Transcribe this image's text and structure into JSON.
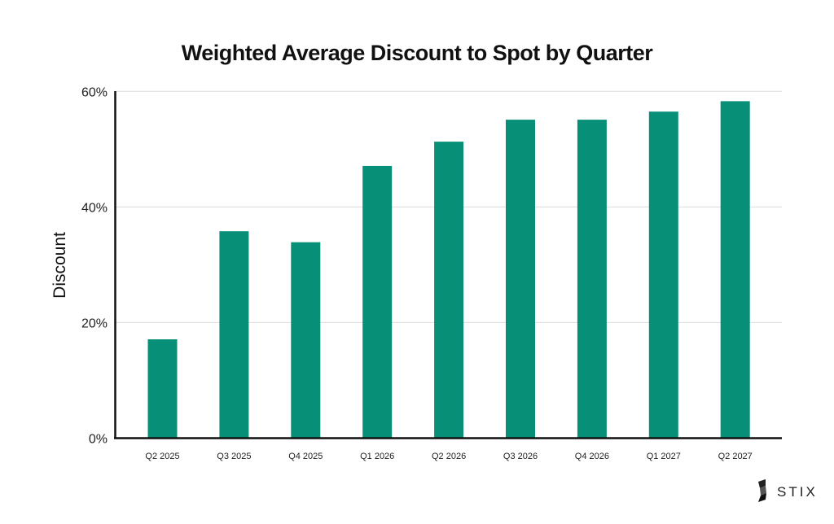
{
  "chart_data": {
    "type": "bar",
    "title": "Weighted Average Discount to Spot by Quarter",
    "xlabel": "",
    "ylabel": "Discount",
    "categories": [
      "Q2 2025",
      "Q3 2025",
      "Q4 2025",
      "Q1 2026",
      "Q2 2026",
      "Q3 2026",
      "Q4 2026",
      "Q1 2027",
      "Q2 2027"
    ],
    "values": [
      17.1,
      35.8,
      33.9,
      47.1,
      51.3,
      55.1,
      55.1,
      56.5,
      58.3
    ],
    "unit": "%",
    "ylim": [
      0,
      60
    ],
    "yticks": [
      0,
      20,
      40,
      60
    ],
    "ytick_labels": [
      "0%",
      "20%",
      "40%",
      "60%"
    ],
    "grid": true,
    "bar_color": "#078f78"
  },
  "logo": {
    "text": "STIX",
    "icon": "stix-logo-icon"
  }
}
